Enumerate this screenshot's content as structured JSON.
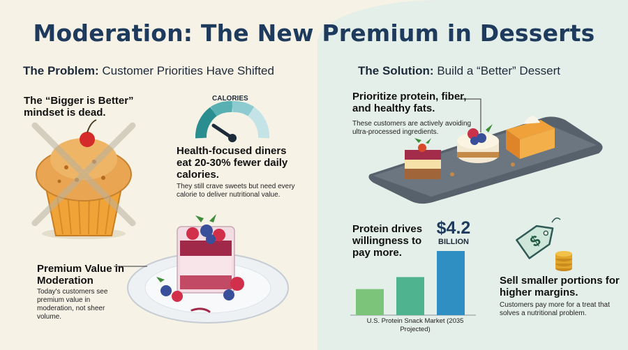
{
  "title": "Moderation: The New Premium in Desserts",
  "problem": {
    "heading_bold": "The Problem:",
    "heading_rest": "Customer Priorities Have Shifted",
    "bigger_better": "The “Bigger is Better” mindset is dead.",
    "gauge_label": "CALORIES",
    "health_headline": "Health-focused diners eat 20-30% fewer daily calories.",
    "health_detail": "They still crave sweets but need every calorie to deliver nutritional value.",
    "premium_headline": "Premium Value in Moderation",
    "premium_detail": "Today's customers see premium value in moderation, not sheer volume."
  },
  "solution": {
    "heading_bold": "The Solution:",
    "heading_rest": "Build a “Better” Dessert",
    "protein_headline": "Prioritize protein, fiber, and healthy fats.",
    "protein_detail": "These customers are actively avoiding ultra-processed ingredients.",
    "willingness_headline": "Protein drives willingness to pay more.",
    "market_value": "$4.2",
    "market_unit": "BILLION",
    "market_caption": "U.S. Protein Snack Market (2035 Projected)",
    "portions_headline": "Sell smaller portions for higher margins.",
    "portions_detail": "Customers pay more for a treat that solves a nutritional problem."
  },
  "chart_data": {
    "type": "bar",
    "categories": [
      "",
      "",
      ""
    ],
    "values": [
      1.3,
      1.9,
      3.2
    ],
    "colors": [
      "#7cc47a",
      "#4fb38f",
      "#2f8fc2"
    ],
    "title": "",
    "xlabel": "U.S. Protein Snack Market (2035 Projected)",
    "ylabel": "",
    "annotation": "$4.2 BILLION"
  },
  "icons": {
    "price_tag": "price-tag-icon",
    "coins": "coin-stack-icon",
    "gauge": "calorie-gauge-icon"
  },
  "colors": {
    "title": "#1e3a5c",
    "left_bg": "#f6f2e6",
    "right_bg": "#e4efe9"
  }
}
